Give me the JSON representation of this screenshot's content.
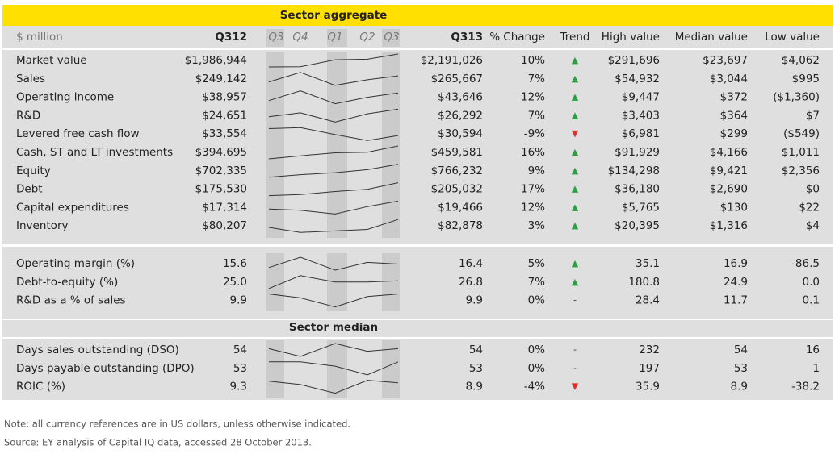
{
  "title": "Sector aggregate",
  "header": {
    "unit": "$ million",
    "q312": "Q312",
    "quarters": [
      "Q3",
      "Q4",
      "Q1",
      "Q2",
      "Q3"
    ],
    "q313": "Q313",
    "change": "% Change",
    "trend": "Trend",
    "high": "High value",
    "median": "Median value",
    "low": "Low value"
  },
  "sections": [
    {
      "rows": [
        {
          "label": "Market value",
          "q312": "$1,986,944",
          "spark": [
            1986944,
            1990000,
            2100000,
            2110000,
            2191026
          ],
          "q313": "$2,191,026",
          "change": "10%",
          "trend": {
            "symbol": "▲",
            "color": "#2e9e44"
          },
          "high": "$291,696",
          "median": "$23,697",
          "low": "$4,062"
        },
        {
          "label": "Sales",
          "q312": "$249,142",
          "spark": [
            249142,
            275000,
            240000,
            255000,
            265667
          ],
          "q313": "$265,667",
          "change": "7%",
          "trend": {
            "symbol": "▲",
            "color": "#2e9e44"
          },
          "high": "$54,932",
          "median": "$3,044",
          "low": "$995"
        },
        {
          "label": "Operating income",
          "q312": "$38,957",
          "spark": [
            38957,
            45000,
            37000,
            41000,
            43646
          ],
          "q313": "$43,646",
          "change": "12%",
          "trend": {
            "symbol": "▲",
            "color": "#2e9e44"
          },
          "high": "$9,447",
          "median": "$372",
          "low": "($1,360)"
        },
        {
          "label": "R&D",
          "q312": "$24,651",
          "spark": [
            24651,
            25500,
            23500,
            25300,
            26292
          ],
          "q313": "$26,292",
          "change": "7%",
          "trend": {
            "symbol": "▲",
            "color": "#2e9e44"
          },
          "high": "$3,403",
          "median": "$364",
          "low": "$7"
        },
        {
          "label": "Levered free cash flow",
          "q312": "$33,554",
          "spark": [
            33554,
            34000,
            31000,
            28500,
            30594
          ],
          "q313": "$30,594",
          "change": "-9%",
          "trend": {
            "symbol": "▼",
            "color": "#e0302a"
          },
          "high": "$6,981",
          "median": "$299",
          "low": "($549)"
        },
        {
          "label": "Cash, ST and LT investments",
          "q312": "$394,695",
          "spark": [
            394695,
            410000,
            425000,
            428000,
            459581
          ],
          "q313": "$459,581",
          "change": "16%",
          "trend": {
            "symbol": "▲",
            "color": "#2e9e44"
          },
          "high": "$91,929",
          "median": "$4,166",
          "low": "$1,011"
        },
        {
          "label": "Equity",
          "q312": "$702,335",
          "spark": [
            702335,
            715000,
            725000,
            740000,
            766232
          ],
          "q313": "$766,232",
          "change": "9%",
          "trend": {
            "symbol": "▲",
            "color": "#2e9e44"
          },
          "high": "$134,298",
          "median": "$9,421",
          "low": "$2,356"
        },
        {
          "label": "Debt",
          "q312": "$175,530",
          "spark": [
            175530,
            178000,
            185000,
            190000,
            205032
          ],
          "q313": "$205,032",
          "change": "17%",
          "trend": {
            "symbol": "▲",
            "color": "#2e9e44"
          },
          "high": "$36,180",
          "median": "$2,690",
          "low": "$0"
        },
        {
          "label": "Capital expenditures",
          "q312": "$17,314",
          "spark": [
            17314,
            17000,
            16000,
            18000,
            19466
          ],
          "q313": "$19,466",
          "change": "12%",
          "trend": {
            "symbol": "▲",
            "color": "#2e9e44"
          },
          "high": "$5,765",
          "median": "$130",
          "low": "$22"
        },
        {
          "label": "Inventory",
          "q312": "$80,207",
          "spark": [
            80207,
            78500,
            79000,
            79500,
            82878
          ],
          "q313": "$82,878",
          "change": "3%",
          "trend": {
            "symbol": "▲",
            "color": "#2e9e44"
          },
          "high": "$20,395",
          "median": "$1,316",
          "low": "$4"
        }
      ]
    },
    {
      "rows": [
        {
          "label": "Operating margin (%)",
          "q312": "15.6",
          "spark": [
            15.6,
            18,
            15,
            16.8,
            16.4
          ],
          "q313": "16.4",
          "change": "5%",
          "trend": {
            "symbol": "▲",
            "color": "#2e9e44"
          },
          "high": "35.1",
          "median": "16.9",
          "low": "-86.5"
        },
        {
          "label": "Debt-to-equity (%)",
          "q312": "25.0",
          "spark": [
            25.0,
            28,
            26.5,
            26.5,
            26.8
          ],
          "q313": "26.8",
          "change": "7%",
          "trend": {
            "symbol": "▲",
            "color": "#2e9e44"
          },
          "high": "180.8",
          "median": "24.9",
          "low": "0.0"
        },
        {
          "label": "R&D as a % of sales",
          "q312": "9.9",
          "spark": [
            9.9,
            9.6,
            8.9,
            9.7,
            9.9
          ],
          "q313": "9.9",
          "change": "0%",
          "trend": {
            "symbol": "-",
            "color": "#333333"
          },
          "high": "28.4",
          "median": "11.7",
          "low": "0.1"
        }
      ]
    },
    {
      "title": "Sector median",
      "rows": [
        {
          "label": "Days sales outstanding (DSO)",
          "q312": "54",
          "spark": [
            54,
            51,
            56,
            53,
            54
          ],
          "q313": "54",
          "change": "0%",
          "trend": {
            "symbol": "-",
            "color": "#333333"
          },
          "high": "232",
          "median": "54",
          "low": "16"
        },
        {
          "label": "Days payable outstanding (DPO)",
          "q312": "53",
          "spark": [
            53,
            53,
            52,
            50,
            53
          ],
          "q313": "53",
          "change": "0%",
          "trend": {
            "symbol": "-",
            "color": "#333333"
          },
          "high": "197",
          "median": "53",
          "low": "1"
        },
        {
          "label": "ROIC (%)",
          "q312": "9.3",
          "spark": [
            9.3,
            8.5,
            6.5,
            9.5,
            8.9
          ],
          "q313": "8.9",
          "change": "-4%",
          "trend": {
            "symbol": "▼",
            "color": "#e0302a"
          },
          "high": "35.9",
          "median": "8.9",
          "low": "-38.2"
        }
      ]
    }
  ],
  "notes": [
    "Note: all currency references are in US dollars, unless otherwise indicated.",
    "Source: EY analysis of Capital IQ data, accessed 28 October 2013."
  ]
}
